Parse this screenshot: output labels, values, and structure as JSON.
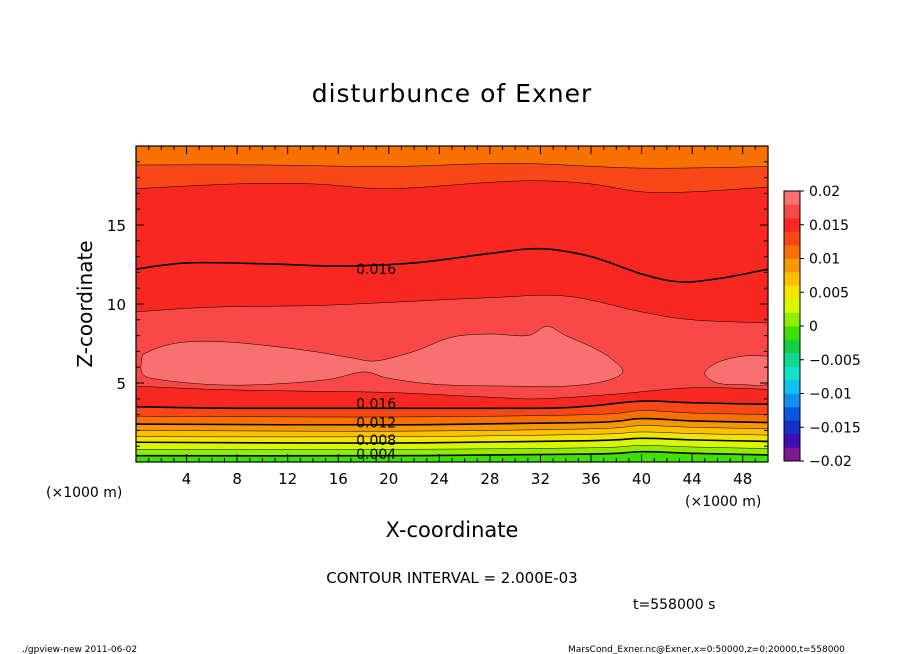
{
  "chart_data": {
    "type": "heatmap",
    "title": "disturbunce of Exner",
    "xlabel": "X-coordinate",
    "ylabel": "Z-coordinate",
    "x_unit": "(×1000 m)",
    "x_unit_right": "(×1000 m)",
    "xlim": [
      0,
      50
    ],
    "ylim": [
      0,
      20
    ],
    "x_ticks": [
      4,
      8,
      12,
      16,
      20,
      24,
      28,
      32,
      36,
      40,
      44,
      48
    ],
    "y_ticks": [
      5,
      10,
      15
    ],
    "grid": false,
    "colorbar": {
      "position": "right",
      "levels": [
        -0.02,
        -0.018,
        -0.016,
        -0.014,
        -0.012,
        -0.01,
        -0.008,
        -0.006,
        -0.004,
        -0.002,
        0,
        0.002,
        0.004,
        0.006,
        0.008,
        0.01,
        0.012,
        0.014,
        0.016,
        0.018,
        0.02
      ],
      "tick_labels": [
        "0.02",
        "0.015",
        "0.01",
        "0.005",
        "0",
        "−0.005",
        "−0.01",
        "−0.015",
        "−0.02"
      ],
      "colors": [
        "#7d1a8f",
        "#3d0fb0",
        "#1530c4",
        "#0a55e0",
        "#1290f0",
        "#10c0ee",
        "#14e0c8",
        "#10d890",
        "#14d040",
        "#40e000",
        "#90ec00",
        "#d8f800",
        "#f4e400",
        "#fcc000",
        "#f89800",
        "#f87000",
        "#f84818",
        "#f82820",
        "#f84848",
        "#f87070"
      ]
    },
    "contour_interval": "CONTOUR INTERVAL = 2.000E-03",
    "contour_labels": [
      {
        "text": "0.016",
        "x": 19,
        "z": 12.2
      },
      {
        "text": "0.016",
        "x": 19,
        "z": 3.7
      },
      {
        "text": "0.012",
        "x": 19,
        "z": 2.5
      },
      {
        "text": "0.008",
        "x": 19,
        "z": 1.4
      },
      {
        "text": "0.004",
        "x": 19,
        "z": 0.5
      }
    ],
    "bands": [
      {
        "upper": [
          [
            0,
            0.4
          ],
          [
            20,
            0.4
          ],
          [
            36,
            0.5
          ],
          [
            40,
            0.65
          ],
          [
            44,
            0.55
          ],
          [
            50,
            0.45
          ]
        ],
        "fill": "#40e000"
      },
      {
        "upper": [
          [
            0,
            0.8
          ],
          [
            20,
            0.8
          ],
          [
            36,
            0.9
          ],
          [
            40,
            1.05
          ],
          [
            44,
            0.95
          ],
          [
            50,
            0.85
          ]
        ],
        "fill": "#90ec00"
      },
      {
        "upper": [
          [
            0,
            1.25
          ],
          [
            20,
            1.2
          ],
          [
            36,
            1.35
          ],
          [
            40,
            1.5
          ],
          [
            44,
            1.4
          ],
          [
            50,
            1.3
          ]
        ],
        "fill": "#d8f800"
      },
      {
        "upper": [
          [
            0,
            1.6
          ],
          [
            20,
            1.6
          ],
          [
            36,
            1.75
          ],
          [
            40,
            1.9
          ],
          [
            44,
            1.8
          ],
          [
            50,
            1.7
          ]
        ],
        "fill": "#f4e400"
      },
      {
        "upper": [
          [
            0,
            2.0
          ],
          [
            20,
            1.95
          ],
          [
            36,
            2.1
          ],
          [
            40,
            2.3
          ],
          [
            44,
            2.2
          ],
          [
            50,
            2.1
          ]
        ],
        "fill": "#fcc000"
      },
      {
        "upper": [
          [
            0,
            2.4
          ],
          [
            20,
            2.35
          ],
          [
            36,
            2.5
          ],
          [
            40,
            2.75
          ],
          [
            44,
            2.6
          ],
          [
            50,
            2.5
          ]
        ],
        "fill": "#f89800"
      },
      {
        "upper": [
          [
            0,
            2.9
          ],
          [
            20,
            2.85
          ],
          [
            36,
            3.0
          ],
          [
            40,
            3.25
          ],
          [
            44,
            3.1
          ],
          [
            50,
            3.0
          ]
        ],
        "fill": "#f87000"
      },
      {
        "upper": [
          [
            0,
            3.5
          ],
          [
            8,
            3.4
          ],
          [
            20,
            3.4
          ],
          [
            32,
            3.4
          ],
          [
            36,
            3.55
          ],
          [
            40,
            3.85
          ],
          [
            44,
            3.75
          ],
          [
            50,
            3.65
          ]
        ],
        "fill": "#f84818"
      },
      {
        "upper": [
          [
            0,
            4.8
          ],
          [
            6,
            4.6
          ],
          [
            12,
            4.5
          ],
          [
            20,
            4.4
          ],
          [
            28,
            4.1
          ],
          [
            32,
            4.0
          ],
          [
            38,
            4.3
          ],
          [
            44,
            4.7
          ],
          [
            50,
            4.6
          ]
        ],
        "fill": "#f82820"
      },
      {
        "upper": [
          [
            0,
            9.5
          ],
          [
            6,
            9.8
          ],
          [
            14,
            9.9
          ],
          [
            20,
            10.1
          ],
          [
            28,
            10.4
          ],
          [
            34,
            10.5
          ],
          [
            40,
            9.5
          ],
          [
            44,
            9.0
          ],
          [
            50,
            8.8
          ]
        ],
        "fill": "#f84848"
      },
      {
        "upper": [
          [
            0,
            12.2
          ],
          [
            4,
            12.6
          ],
          [
            10,
            12.55
          ],
          [
            16,
            12.4
          ],
          [
            22,
            12.6
          ],
          [
            28,
            13.2
          ],
          [
            32,
            13.5
          ],
          [
            36,
            13.0
          ],
          [
            40,
            11.9
          ],
          [
            43,
            11.4
          ],
          [
            46,
            11.6
          ],
          [
            50,
            12.2
          ]
        ],
        "fill": "#f82820"
      },
      {
        "upper": [
          [
            0,
            17.3
          ],
          [
            8,
            17.6
          ],
          [
            14,
            17.6
          ],
          [
            20,
            17.3
          ],
          [
            28,
            17.7
          ],
          [
            32,
            17.8
          ],
          [
            36,
            17.6
          ],
          [
            40,
            17.1
          ],
          [
            44,
            17.1
          ],
          [
            50,
            17.4
          ]
        ],
        "fill": "#f82820"
      },
      {
        "upper": [
          [
            0,
            18.8
          ],
          [
            10,
            18.8
          ],
          [
            20,
            18.7
          ],
          [
            30,
            18.9
          ],
          [
            40,
            18.6
          ],
          [
            50,
            18.7
          ]
        ],
        "fill": "#f84818"
      },
      {
        "upper": [
          [
            0,
            20
          ],
          [
            50,
            20
          ]
        ],
        "fill": "#f87000"
      }
    ],
    "max_patches": [
      {
        "fill": "#f87070",
        "points": [
          [
            0.5,
            6.8
          ],
          [
            2,
            7.3
          ],
          [
            4,
            7.6
          ],
          [
            7,
            7.6
          ],
          [
            10,
            7.4
          ],
          [
            14,
            7.0
          ],
          [
            17,
            6.6
          ],
          [
            19,
            6.4
          ],
          [
            22,
            7.0
          ],
          [
            25,
            7.9
          ],
          [
            28,
            8.1
          ],
          [
            31,
            8.0
          ],
          [
            32.5,
            8.6
          ],
          [
            34,
            8.0
          ],
          [
            36,
            7.3
          ],
          [
            37.5,
            6.6
          ],
          [
            38.5,
            5.7
          ],
          [
            37,
            5.1
          ],
          [
            34,
            4.8
          ],
          [
            30,
            4.8
          ],
          [
            24,
            4.9
          ],
          [
            20,
            5.3
          ],
          [
            18,
            5.7
          ],
          [
            15,
            5.2
          ],
          [
            10,
            4.9
          ],
          [
            6,
            4.9
          ],
          [
            2,
            5.2
          ],
          [
            0.5,
            5.6
          ]
        ]
      },
      {
        "fill": "#f87070",
        "points": [
          [
            50,
            6.7
          ],
          [
            48,
            6.7
          ],
          [
            46,
            6.3
          ],
          [
            45,
            5.6
          ],
          [
            46,
            5.0
          ],
          [
            48,
            4.9
          ],
          [
            50,
            5.0
          ]
        ]
      }
    ],
    "black_contours": [
      [
        [
          0,
          12.2
        ],
        [
          4,
          12.6
        ],
        [
          10,
          12.55
        ],
        [
          16,
          12.4
        ],
        [
          22,
          12.6
        ],
        [
          28,
          13.2
        ],
        [
          32,
          13.5
        ],
        [
          36,
          13.0
        ],
        [
          40,
          11.9
        ],
        [
          43,
          11.4
        ],
        [
          46,
          11.6
        ],
        [
          50,
          12.2
        ]
      ],
      [
        [
          0,
          3.5
        ],
        [
          8,
          3.4
        ],
        [
          20,
          3.4
        ],
        [
          32,
          3.4
        ],
        [
          36,
          3.55
        ],
        [
          40,
          3.85
        ],
        [
          44,
          3.75
        ],
        [
          50,
          3.65
        ]
      ],
      [
        [
          0,
          2.4
        ],
        [
          20,
          2.35
        ],
        [
          36,
          2.5
        ],
        [
          40,
          2.75
        ],
        [
          44,
          2.6
        ],
        [
          50,
          2.5
        ]
      ],
      [
        [
          0,
          1.25
        ],
        [
          20,
          1.2
        ],
        [
          36,
          1.35
        ],
        [
          40,
          1.5
        ],
        [
          44,
          1.4
        ],
        [
          50,
          1.3
        ]
      ],
      [
        [
          0,
          0.4
        ],
        [
          20,
          0.4
        ],
        [
          36,
          0.5
        ],
        [
          40,
          0.65
        ],
        [
          44,
          0.55
        ],
        [
          50,
          0.45
        ]
      ]
    ]
  },
  "footer": {
    "time": "t=558000 s",
    "left_note": "./gpview-new  2011-06-02",
    "right_note": "MarsCond_Exner.nc@Exner,x=0:50000,z=0:20000,t=558000"
  }
}
